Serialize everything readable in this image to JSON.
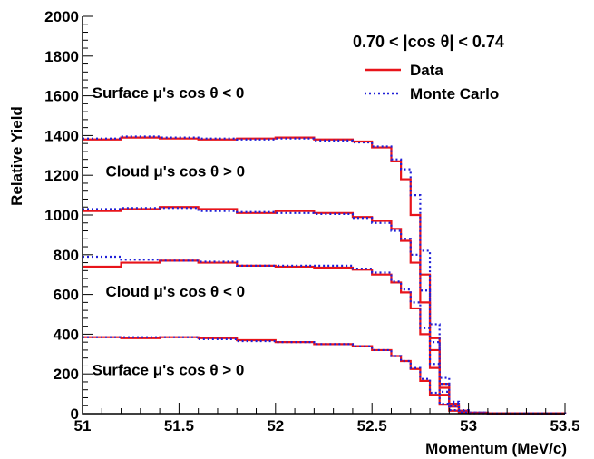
{
  "chart_data": {
    "type": "line",
    "title": "",
    "xlabel": "Momentum (MeV/c)",
    "ylabel": "Relative Yield",
    "xlim": [
      51,
      53.5
    ],
    "ylim": [
      0,
      2000
    ],
    "x_ticks": [
      "51",
      "51.5",
      "52",
      "52.5",
      "53",
      "53.5"
    ],
    "y_ticks": [
      "0",
      "200",
      "400",
      "600",
      "800",
      "1000",
      "1200",
      "1400",
      "1600",
      "1800",
      "2000"
    ],
    "legend": {
      "title": "0.70 < |cos θ| < 0.74",
      "position": "top-right",
      "entries": [
        {
          "label": "Data",
          "color": "#e8141a",
          "style": "solid"
        },
        {
          "label": "Monte Carlo",
          "color": "#1f1fd8",
          "style": "dotted"
        }
      ]
    },
    "annotations": [
      {
        "text": "Surface μ's cos θ < 0",
        "x": 51.05,
        "y": 1590
      },
      {
        "text": "Cloud μ's cos θ > 0",
        "x": 51.12,
        "y": 1195
      },
      {
        "text": "Cloud μ's cos θ < 0",
        "x": 51.12,
        "y": 590
      },
      {
        "text": "Surface μ's cos θ > 0",
        "x": 51.05,
        "y": 195
      }
    ],
    "x": [
      51.0,
      51.2,
      51.4,
      51.6,
      51.8,
      52.0,
      52.2,
      52.4,
      52.5,
      52.6,
      52.65,
      52.7,
      52.75,
      52.8,
      52.85,
      52.9,
      52.95,
      53.0,
      53.1,
      53.5
    ],
    "series": [
      {
        "name": "Data",
        "group": "Surface μ's cos θ < 0",
        "color": "#e8141a",
        "values": [
          1380,
          1390,
          1385,
          1380,
          1385,
          1390,
          1380,
          1370,
          1340,
          1270,
          1180,
          1000,
          700,
          380,
          150,
          50,
          15,
          5,
          2,
          0
        ]
      },
      {
        "name": "Monte Carlo",
        "group": "Surface μ's cos θ < 0",
        "color": "#1f1fd8",
        "values": [
          1385,
          1395,
          1390,
          1385,
          1380,
          1385,
          1375,
          1365,
          1345,
          1280,
          1230,
          1100,
          820,
          450,
          180,
          60,
          18,
          6,
          2,
          0
        ]
      },
      {
        "name": "Data",
        "group": "Cloud μ's cos θ > 0",
        "color": "#e8141a",
        "values": [
          1020,
          1030,
          1040,
          1030,
          1010,
          1020,
          1010,
          990,
          970,
          930,
          870,
          760,
          560,
          320,
          130,
          45,
          12,
          4,
          1,
          0
        ]
      },
      {
        "name": "Monte Carlo",
        "group": "Cloud μ's cos θ > 0",
        "color": "#1f1fd8",
        "values": [
          1030,
          1035,
          1035,
          1020,
          1015,
          1010,
          1005,
          985,
          960,
          920,
          880,
          800,
          620,
          360,
          150,
          50,
          14,
          5,
          1,
          0
        ]
      },
      {
        "name": "Data",
        "group": "Cloud μ's cos θ < 0",
        "color": "#e8141a",
        "values": [
          740,
          760,
          770,
          760,
          745,
          740,
          735,
          725,
          700,
          660,
          610,
          530,
          400,
          230,
          95,
          35,
          10,
          3,
          1,
          0
        ]
      },
      {
        "name": "Monte Carlo",
        "group": "Cloud μ's cos θ < 0",
        "color": "#1f1fd8",
        "values": [
          790,
          775,
          770,
          765,
          745,
          745,
          745,
          730,
          710,
          665,
          625,
          560,
          430,
          250,
          110,
          38,
          12,
          4,
          1,
          0
        ]
      },
      {
        "name": "Data",
        "group": "Surface μ's cos θ > 0",
        "color": "#e8141a",
        "values": [
          385,
          380,
          385,
          380,
          370,
          360,
          350,
          340,
          320,
          290,
          265,
          225,
          165,
          95,
          45,
          15,
          5,
          2,
          1,
          0
        ]
      },
      {
        "name": "Monte Carlo",
        "group": "Surface μ's cos θ > 0",
        "color": "#1f1fd8",
        "values": [
          385,
          385,
          385,
          375,
          365,
          360,
          350,
          340,
          320,
          290,
          265,
          230,
          175,
          105,
          50,
          18,
          6,
          2,
          1,
          0
        ]
      }
    ]
  }
}
